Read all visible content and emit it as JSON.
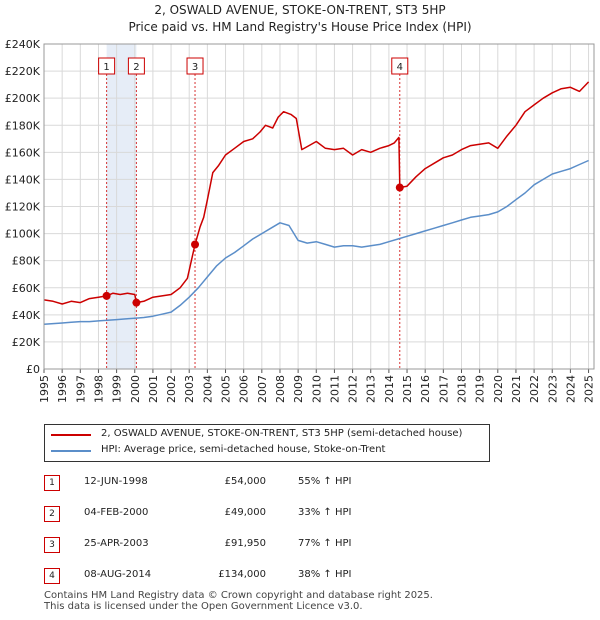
{
  "title_line1": "2, OSWALD AVENUE, STOKE-ON-TRENT, ST3 5HP",
  "title_line2": "Price paid vs. HM Land Registry's House Price Index (HPI)",
  "legend": {
    "property_label": "2, OSWALD AVENUE, STOKE-ON-TRENT, ST3 5HP (semi-detached house)",
    "hpi_label": "HPI: Average price, semi-detached house, Stoke-on-Trent"
  },
  "colors": {
    "property": "#cc0000",
    "hpi": "#5b8ec9",
    "shade": "#e6edf7",
    "grid": "#d9d9d9",
    "marker_line": "#cc0000"
  },
  "sales": [
    {
      "num": "1",
      "date": "12-JUN-1998",
      "price": "£54,000",
      "hpi": "55% ↑ HPI"
    },
    {
      "num": "2",
      "date": "04-FEB-2000",
      "price": "£49,000",
      "hpi": "33% ↑ HPI"
    },
    {
      "num": "3",
      "date": "25-APR-2003",
      "price": "£91,950",
      "hpi": "77% ↑ HPI"
    },
    {
      "num": "4",
      "date": "08-AUG-2014",
      "price": "£134,000",
      "hpi": "38% ↑ HPI"
    }
  ],
  "footer_line1": "Contains HM Land Registry data © Crown copyright and database right 2025.",
  "footer_line2": "This data is licensed under the Open Government Licence v3.0.",
  "chart_data": {
    "type": "line",
    "title": "2, OSWALD AVENUE, STOKE-ON-TRENT, ST3 5HP",
    "subtitle": "Price paid vs. HM Land Registry's House Price Index (HPI)",
    "xlabel": "",
    "ylabel": "",
    "xlim": [
      1995,
      2025.3
    ],
    "ylim": [
      0,
      240000
    ],
    "grid": true,
    "x_ticks": [
      "1995",
      "1996",
      "1997",
      "1998",
      "1999",
      "2000",
      "2001",
      "2002",
      "2003",
      "2004",
      "2005",
      "2006",
      "2007",
      "2008",
      "2009",
      "2010",
      "2011",
      "2012",
      "2013",
      "2014",
      "2015",
      "2016",
      "2017",
      "2018",
      "2019",
      "2020",
      "2021",
      "2022",
      "2023",
      "2024",
      "2025"
    ],
    "y_ticks": [
      {
        "value": 0,
        "label": "£0"
      },
      {
        "value": 20000,
        "label": "£20K"
      },
      {
        "value": 40000,
        "label": "£40K"
      },
      {
        "value": 60000,
        "label": "£60K"
      },
      {
        "value": 80000,
        "label": "£80K"
      },
      {
        "value": 100000,
        "label": "£100K"
      },
      {
        "value": 120000,
        "label": "£120K"
      },
      {
        "value": 140000,
        "label": "£140K"
      },
      {
        "value": 160000,
        "label": "£160K"
      },
      {
        "value": 180000,
        "label": "£180K"
      },
      {
        "value": 200000,
        "label": "£200K"
      },
      {
        "value": 220000,
        "label": "£220K"
      },
      {
        "value": 240000,
        "label": "£240K"
      }
    ],
    "shaded_ranges": [
      [
        1998.45,
        2000.09
      ]
    ],
    "markers": [
      {
        "label": "1",
        "x": 1998.45,
        "y": 54000
      },
      {
        "label": "2",
        "x": 2000.09,
        "y": 49000
      },
      {
        "label": "3",
        "x": 2003.32,
        "y": 91950
      },
      {
        "label": "4",
        "x": 2014.6,
        "y": 134000
      }
    ],
    "series": [
      {
        "name": "2, OSWALD AVENUE, STOKE-ON-TRENT, ST3 5HP (semi-detached house)",
        "x": [
          1995.0,
          1995.5,
          1996.0,
          1996.5,
          1997.0,
          1997.5,
          1998.0,
          1998.45,
          1998.8,
          1999.2,
          1999.6,
          2000.0,
          2000.09,
          2000.5,
          2001.0,
          2001.5,
          2002.0,
          2002.5,
          2002.9,
          2003.32,
          2003.6,
          2003.8,
          2004.0,
          2004.3,
          2004.6,
          2005.0,
          2005.5,
          2006.0,
          2006.5,
          2006.9,
          2007.2,
          2007.6,
          2007.9,
          2008.2,
          2008.6,
          2008.9,
          2009.2,
          2009.6,
          2010.0,
          2010.5,
          2011.0,
          2011.5,
          2012.0,
          2012.5,
          2013.0,
          2013.5,
          2014.0,
          2014.3,
          2014.55,
          2014.6,
          2015.0,
          2015.5,
          2016.0,
          2016.5,
          2017.0,
          2017.5,
          2018.0,
          2018.5,
          2019.0,
          2019.5,
          2020.0,
          2020.5,
          2021.0,
          2021.5,
          2022.0,
          2022.5,
          2023.0,
          2023.5,
          2024.0,
          2024.5,
          2025.0
        ],
        "values": [
          51000,
          50000,
          48000,
          50000,
          49000,
          52000,
          53000,
          54000,
          56000,
          55000,
          56000,
          55000,
          49000,
          50000,
          53000,
          54000,
          55000,
          60000,
          67000,
          91950,
          105000,
          112000,
          125000,
          145000,
          150000,
          158000,
          163000,
          168000,
          170000,
          175000,
          180000,
          178000,
          186000,
          190000,
          188000,
          185000,
          162000,
          165000,
          168000,
          163000,
          162000,
          163000,
          158000,
          162000,
          160000,
          163000,
          165000,
          167000,
          171000,
          134000,
          135000,
          142000,
          148000,
          152000,
          156000,
          158000,
          162000,
          165000,
          166000,
          167000,
          163000,
          172000,
          180000,
          190000,
          195000,
          200000,
          204000,
          207000,
          208000,
          205000,
          212000
        ]
      },
      {
        "name": "HPI: Average price, semi-detached house, Stoke-on-Trent",
        "x": [
          1995.0,
          1995.5,
          1996.0,
          1996.5,
          1997.0,
          1997.5,
          1998.0,
          1998.5,
          1999.0,
          1999.5,
          2000.0,
          2000.5,
          2001.0,
          2001.5,
          2002.0,
          2002.5,
          2003.0,
          2003.5,
          2004.0,
          2004.5,
          2005.0,
          2005.5,
          2006.0,
          2006.5,
          2007.0,
          2007.5,
          2008.0,
          2008.5,
          2009.0,
          2009.5,
          2010.0,
          2010.5,
          2011.0,
          2011.5,
          2012.0,
          2012.5,
          2013.0,
          2013.5,
          2014.0,
          2014.5,
          2015.0,
          2015.5,
          2016.0,
          2016.5,
          2017.0,
          2017.5,
          2018.0,
          2018.5,
          2019.0,
          2019.5,
          2020.0,
          2020.5,
          2021.0,
          2021.5,
          2022.0,
          2022.5,
          2023.0,
          2023.5,
          2024.0,
          2024.5,
          2025.0
        ],
        "values": [
          33000,
          33500,
          34000,
          34500,
          35000,
          35000,
          35500,
          36000,
          36500,
          37000,
          37500,
          38000,
          39000,
          40500,
          42000,
          47000,
          53000,
          60000,
          68000,
          76000,
          82000,
          86000,
          91000,
          96000,
          100000,
          104000,
          108000,
          106000,
          95000,
          93000,
          94000,
          92000,
          90000,
          91000,
          91000,
          90000,
          91000,
          92000,
          94000,
          96000,
          98000,
          100000,
          102000,
          104000,
          106000,
          108000,
          110000,
          112000,
          113000,
          114000,
          116000,
          120000,
          125000,
          130000,
          136000,
          140000,
          144000,
          146000,
          148000,
          151000,
          154000
        ]
      }
    ]
  }
}
